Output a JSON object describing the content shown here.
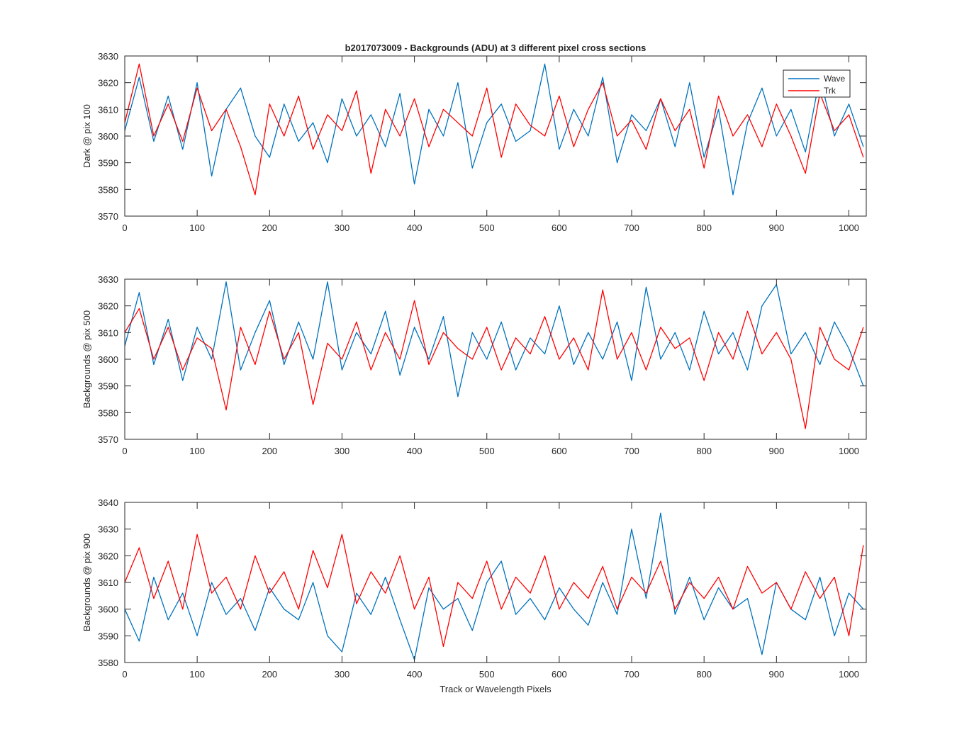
{
  "colors": {
    "wave": "#0072bd",
    "trk": "#ff0000",
    "axis": "#262626",
    "background": "#ffffff"
  },
  "figure": {
    "title": "b2017073009 - Backgrounds (ADU) at 3 different pixel cross sections",
    "xlabel": "Track or Wavelength Pixels",
    "legend": {
      "placement": "top-right",
      "entries": [
        "Wave",
        "Trk"
      ]
    }
  },
  "chart_data": [
    {
      "type": "line",
      "ylabel": "Dark @ pix 100",
      "xlim": [
        0,
        1024
      ],
      "ylim": [
        3570,
        3630
      ],
      "xticks": [
        0,
        100,
        200,
        300,
        400,
        500,
        600,
        700,
        800,
        900,
        1000
      ],
      "yticks": [
        3570,
        3580,
        3590,
        3600,
        3610,
        3620,
        3630
      ],
      "series": [
        {
          "name": "Wave",
          "x": [
            0,
            20,
            40,
            60,
            80,
            100,
            120,
            140,
            160,
            180,
            200,
            220,
            240,
            260,
            280,
            300,
            320,
            340,
            360,
            380,
            400,
            420,
            440,
            460,
            480,
            500,
            520,
            540,
            560,
            580,
            600,
            620,
            640,
            660,
            680,
            700,
            720,
            740,
            760,
            780,
            800,
            820,
            840,
            860,
            880,
            900,
            920,
            940,
            960,
            980,
            1000,
            1020
          ],
          "values": [
            3602,
            3622,
            3598,
            3615,
            3595,
            3620,
            3585,
            3610,
            3618,
            3600,
            3592,
            3612,
            3598,
            3605,
            3590,
            3614,
            3600,
            3608,
            3596,
            3616,
            3582,
            3610,
            3600,
            3620,
            3588,
            3605,
            3612,
            3598,
            3602,
            3627,
            3595,
            3610,
            3600,
            3622,
            3590,
            3608,
            3602,
            3614,
            3596,
            3620,
            3592,
            3610,
            3578,
            3605,
            3618,
            3600,
            3610,
            3594,
            3622,
            3600,
            3612,
            3596
          ]
        },
        {
          "name": "Trk",
          "x": [
            0,
            20,
            40,
            60,
            80,
            100,
            120,
            140,
            160,
            180,
            200,
            220,
            240,
            260,
            280,
            300,
            320,
            340,
            360,
            380,
            400,
            420,
            440,
            460,
            480,
            500,
            520,
            540,
            560,
            580,
            600,
            620,
            640,
            660,
            680,
            700,
            720,
            740,
            760,
            780,
            800,
            820,
            840,
            860,
            880,
            900,
            920,
            940,
            960,
            980,
            1000,
            1020
          ],
          "values": [
            3605,
            3627,
            3600,
            3612,
            3598,
            3618,
            3602,
            3610,
            3596,
            3578,
            3612,
            3600,
            3615,
            3595,
            3608,
            3602,
            3617,
            3586,
            3610,
            3600,
            3614,
            3596,
            3610,
            3605,
            3600,
            3618,
            3592,
            3612,
            3604,
            3600,
            3615,
            3596,
            3610,
            3620,
            3600,
            3606,
            3595,
            3614,
            3602,
            3610,
            3588,
            3615,
            3600,
            3608,
            3596,
            3612,
            3600,
            3586,
            3616,
            3602,
            3608,
            3592
          ]
        }
      ]
    },
    {
      "type": "line",
      "ylabel": "Backgrounds @ pix 500",
      "xlim": [
        0,
        1024
      ],
      "ylim": [
        3570,
        3630
      ],
      "xticks": [
        0,
        100,
        200,
        300,
        400,
        500,
        600,
        700,
        800,
        900,
        1000
      ],
      "yticks": [
        3570,
        3580,
        3590,
        3600,
        3610,
        3620,
        3630
      ],
      "series": [
        {
          "name": "Wave",
          "x": [
            0,
            20,
            40,
            60,
            80,
            100,
            120,
            140,
            160,
            180,
            200,
            220,
            240,
            260,
            280,
            300,
            320,
            340,
            360,
            380,
            400,
            420,
            440,
            460,
            480,
            500,
            520,
            540,
            560,
            580,
            600,
            620,
            640,
            660,
            680,
            700,
            720,
            740,
            760,
            780,
            800,
            820,
            840,
            860,
            880,
            900,
            920,
            940,
            960,
            980,
            1000,
            1020
          ],
          "values": [
            3605,
            3625,
            3598,
            3615,
            3592,
            3612,
            3600,
            3629,
            3596,
            3610,
            3622,
            3598,
            3614,
            3600,
            3629,
            3596,
            3610,
            3602,
            3618,
            3594,
            3612,
            3600,
            3616,
            3586,
            3610,
            3600,
            3614,
            3596,
            3608,
            3602,
            3620,
            3598,
            3610,
            3600,
            3614,
            3592,
            3627,
            3600,
            3610,
            3596,
            3618,
            3602,
            3610,
            3596,
            3620,
            3628,
            3602,
            3610,
            3598,
            3614,
            3604,
            3590
          ]
        },
        {
          "name": "Trk",
          "x": [
            0,
            20,
            40,
            60,
            80,
            100,
            120,
            140,
            160,
            180,
            200,
            220,
            240,
            260,
            280,
            300,
            320,
            340,
            360,
            380,
            400,
            420,
            440,
            460,
            480,
            500,
            520,
            540,
            560,
            580,
            600,
            620,
            640,
            660,
            680,
            700,
            720,
            740,
            760,
            780,
            800,
            820,
            840,
            860,
            880,
            900,
            920,
            940,
            960,
            980,
            1000,
            1020
          ],
          "values": [
            3610,
            3619,
            3600,
            3612,
            3596,
            3608,
            3604,
            3581,
            3612,
            3598,
            3618,
            3600,
            3610,
            3583,
            3606,
            3600,
            3614,
            3596,
            3610,
            3600,
            3622,
            3598,
            3610,
            3604,
            3600,
            3612,
            3596,
            3608,
            3602,
            3616,
            3600,
            3608,
            3596,
            3626,
            3600,
            3610,
            3596,
            3612,
            3604,
            3608,
            3592,
            3610,
            3600,
            3618,
            3602,
            3610,
            3600,
            3574,
            3612,
            3600,
            3596,
            3612
          ]
        }
      ]
    },
    {
      "type": "line",
      "ylabel": "Backgrounds @ pix 900",
      "xlim": [
        0,
        1024
      ],
      "ylim": [
        3580,
        3640
      ],
      "xticks": [
        0,
        100,
        200,
        300,
        400,
        500,
        600,
        700,
        800,
        900,
        1000
      ],
      "yticks": [
        3580,
        3590,
        3600,
        3610,
        3620,
        3630,
        3640
      ],
      "series": [
        {
          "name": "Wave",
          "x": [
            0,
            20,
            40,
            60,
            80,
            100,
            120,
            140,
            160,
            180,
            200,
            220,
            240,
            260,
            280,
            300,
            320,
            340,
            360,
            380,
            400,
            420,
            440,
            460,
            480,
            500,
            520,
            540,
            560,
            580,
            600,
            620,
            640,
            660,
            680,
            700,
            720,
            740,
            760,
            780,
            800,
            820,
            840,
            860,
            880,
            900,
            920,
            940,
            960,
            980,
            1000,
            1020
          ],
          "values": [
            3600,
            3588,
            3612,
            3596,
            3606,
            3590,
            3610,
            3598,
            3604,
            3592,
            3608,
            3600,
            3596,
            3610,
            3590,
            3584,
            3606,
            3598,
            3612,
            3596,
            3581,
            3608,
            3600,
            3604,
            3592,
            3610,
            3618,
            3598,
            3604,
            3596,
            3608,
            3600,
            3594,
            3610,
            3598,
            3630,
            3604,
            3636,
            3598,
            3612,
            3596,
            3608,
            3600,
            3604,
            3583,
            3610,
            3600,
            3596,
            3612,
            3590,
            3606,
            3600
          ]
        },
        {
          "name": "Trk",
          "x": [
            0,
            20,
            40,
            60,
            80,
            100,
            120,
            140,
            160,
            180,
            200,
            220,
            240,
            260,
            280,
            300,
            320,
            340,
            360,
            380,
            400,
            420,
            440,
            460,
            480,
            500,
            520,
            540,
            560,
            580,
            600,
            620,
            640,
            660,
            680,
            700,
            720,
            740,
            760,
            780,
            800,
            820,
            840,
            860,
            880,
            900,
            920,
            940,
            960,
            980,
            1000,
            1020
          ],
          "values": [
            3610,
            3623,
            3604,
            3618,
            3600,
            3628,
            3606,
            3612,
            3600,
            3620,
            3606,
            3614,
            3600,
            3622,
            3608,
            3628,
            3602,
            3614,
            3606,
            3620,
            3600,
            3612,
            3586,
            3610,
            3604,
            3618,
            3600,
            3612,
            3606,
            3620,
            3600,
            3610,
            3604,
            3616,
            3600,
            3612,
            3606,
            3618,
            3600,
            3610,
            3604,
            3612,
            3600,
            3616,
            3606,
            3610,
            3600,
            3614,
            3604,
            3612,
            3590,
            3624
          ]
        }
      ]
    }
  ]
}
